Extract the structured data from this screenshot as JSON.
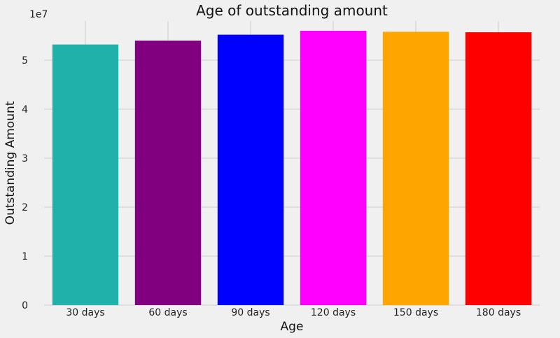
{
  "chart_data": {
    "type": "bar",
    "title": "Age of outstanding amount",
    "xlabel": "Age",
    "ylabel": "Outstanding Amount",
    "y_scale_label": "1e7",
    "categories": [
      "30 days",
      "60 days",
      "90 days",
      "120 days",
      "150 days",
      "180 days"
    ],
    "values": [
      53200000,
      54000000,
      55200000,
      56000000,
      55800000,
      55700000
    ],
    "colors": [
      "#20b2aa",
      "#800080",
      "#0000ff",
      "#ff00ff",
      "#ffa500",
      "#ff0000"
    ],
    "ylim": [
      0,
      58000000
    ],
    "yticks": [
      0,
      10000000,
      20000000,
      30000000,
      40000000,
      50000000
    ],
    "ytick_labels": [
      "0",
      "1",
      "2",
      "3",
      "4",
      "5"
    ],
    "grid": true,
    "legend": "none"
  }
}
